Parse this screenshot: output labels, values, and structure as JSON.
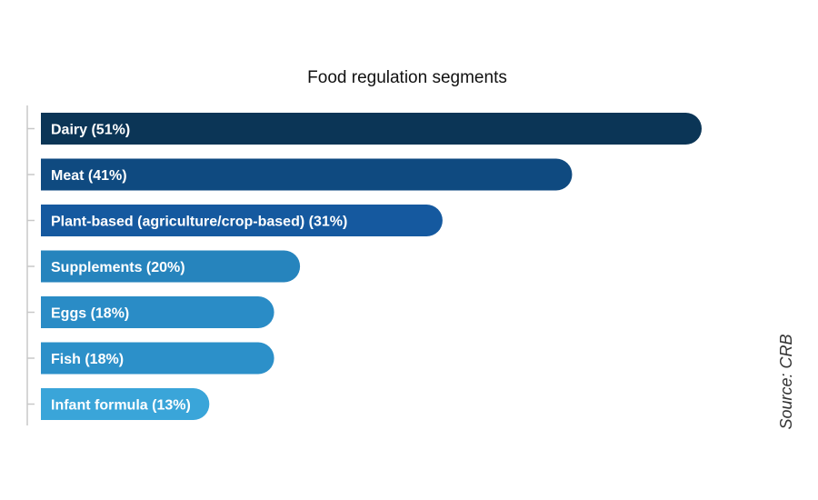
{
  "chart_data": {
    "type": "bar",
    "orientation": "horizontal",
    "title": "Food regulation segments",
    "categories": [
      "Dairy",
      "Meat",
      "Plant-based (agriculture/crop-based)",
      "Supplements",
      "Eggs",
      "Fish",
      "Infant formula"
    ],
    "labels": [
      "Dairy (51%)",
      "Meat (41%)",
      "Plant-based (agriculture/crop-based)  (31%)",
      "Supplements (20%)",
      "Eggs (18%)",
      "Fish (18%)",
      "Infant formula (13%)"
    ],
    "values": [
      51,
      41,
      31,
      20,
      18,
      18,
      13
    ],
    "unit": "%",
    "xlim": [
      0,
      51
    ],
    "grid": false,
    "colors": [
      "#0b3556",
      "#0f4a80",
      "#15599f",
      "#2684bd",
      "#2a8cc6",
      "#2c90c9",
      "#3aa5d9"
    ],
    "source": "Source: CRB"
  }
}
